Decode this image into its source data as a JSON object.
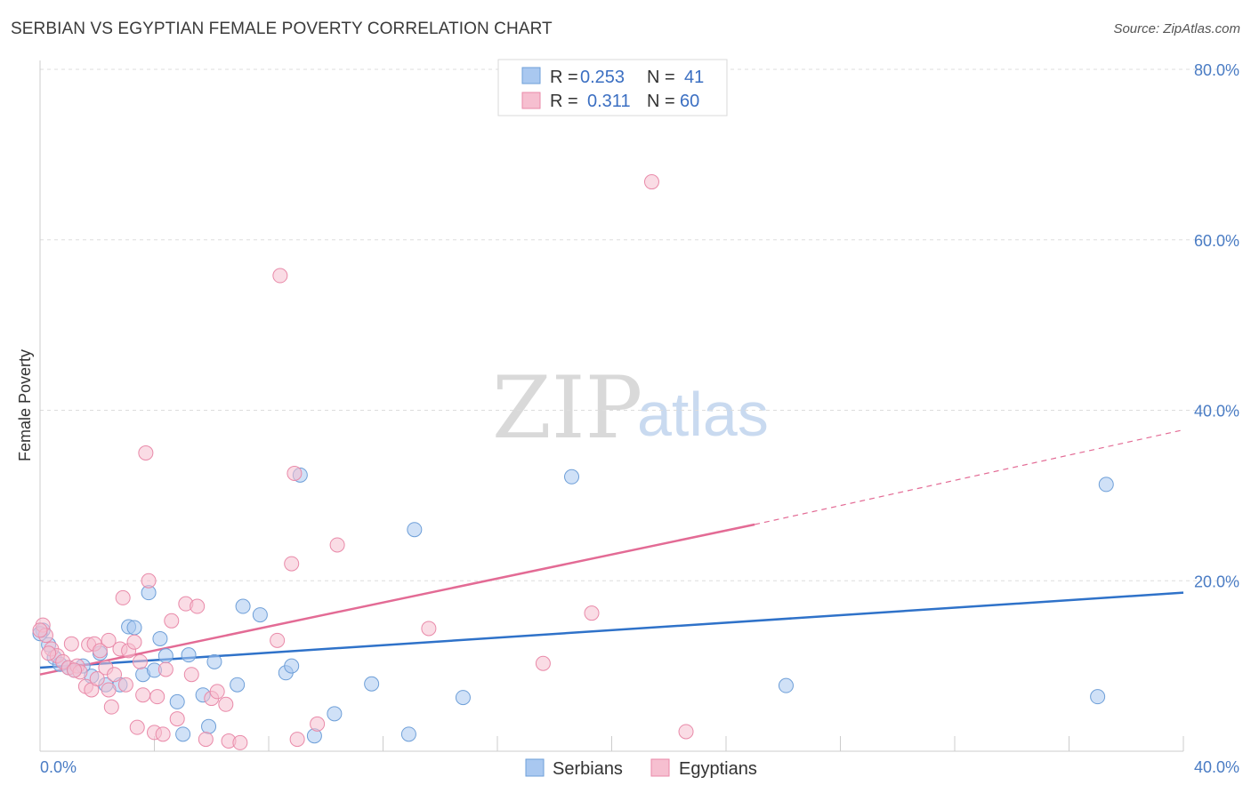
{
  "header": {
    "title": "SERBIAN VS EGYPTIAN FEMALE POVERTY CORRELATION CHART",
    "source": "Source: ZipAtlas.com"
  },
  "legend": {
    "serbians": {
      "r_label": "R =",
      "r_value": "0.253",
      "n_label": "N =",
      "n_value": "41"
    },
    "egyptians": {
      "r_label": "R =",
      "r_value": "0.311",
      "n_label": "N =",
      "n_value": "60"
    }
  },
  "bottom_legend": {
    "serbians": "Serbians",
    "egyptians": "Egyptians"
  },
  "watermark": {
    "zip": "ZIP",
    "atlas": "atlas"
  },
  "colors": {
    "serbians_fill": "#a9c8f0",
    "serbians_stroke": "#6e9fd8",
    "serbians_line": "#2f72c9",
    "egyptians_fill": "#f6bfd0",
    "egyptians_stroke": "#e98aa9",
    "egyptians_line": "#e36b95",
    "tick_label": "#4a7cc4",
    "grid": "#dddddd"
  },
  "chart_data": {
    "type": "scatter",
    "title": "SERBIAN VS EGYPTIAN FEMALE POVERTY CORRELATION CHART",
    "xlabel": "",
    "ylabel": "Female Poverty",
    "xlim": [
      0,
      40
    ],
    "ylim": [
      0,
      80
    ],
    "x_tick_labels": [
      "0.0%",
      "40.0%"
    ],
    "y_ticks": [
      20,
      40,
      60,
      80
    ],
    "y_tick_labels": [
      "20.0%",
      "40.0%",
      "60.0%",
      "80.0%"
    ],
    "grid": true,
    "legend_position": "top-center",
    "series": [
      {
        "name": "Serbians",
        "r": 0.253,
        "n": 41,
        "trend": {
          "x0": 0,
          "y0": 9.8,
          "x1": 40,
          "y1": 18.6
        },
        "points": [
          [
            0.1,
            14.2
          ],
          [
            0.3,
            12.5
          ],
          [
            0.5,
            11.0
          ],
          [
            0.7,
            10.2
          ],
          [
            1.0,
            9.8
          ],
          [
            1.2,
            9.5
          ],
          [
            1.5,
            10.0
          ],
          [
            1.8,
            8.8
          ],
          [
            2.1,
            11.5
          ],
          [
            2.3,
            7.8
          ],
          [
            2.8,
            7.8
          ],
          [
            3.1,
            14.6
          ],
          [
            3.3,
            14.5
          ],
          [
            3.6,
            9.0
          ],
          [
            3.8,
            18.6
          ],
          [
            4.0,
            9.5
          ],
          [
            4.2,
            13.2
          ],
          [
            4.4,
            11.2
          ],
          [
            4.8,
            5.8
          ],
          [
            5.0,
            2.0
          ],
          [
            5.2,
            11.3
          ],
          [
            5.7,
            6.6
          ],
          [
            5.9,
            2.9
          ],
          [
            6.1,
            10.5
          ],
          [
            6.9,
            7.8
          ],
          [
            7.1,
            17.0
          ],
          [
            7.7,
            16.0
          ],
          [
            8.6,
            9.2
          ],
          [
            8.8,
            10.0
          ],
          [
            9.1,
            32.4
          ],
          [
            9.6,
            1.8
          ],
          [
            10.3,
            4.4
          ],
          [
            11.6,
            7.9
          ],
          [
            12.9,
            2.0
          ],
          [
            13.1,
            26.0
          ],
          [
            14.8,
            6.3
          ],
          [
            18.6,
            32.2
          ],
          [
            26.1,
            7.7
          ],
          [
            37.0,
            6.4
          ],
          [
            37.3,
            31.3
          ],
          [
            0.0,
            13.8
          ]
        ]
      },
      {
        "name": "Egyptians",
        "r": 0.311,
        "n": 60,
        "trend": {
          "x0": 0,
          "y0": 9.0,
          "x1": 25,
          "y1": 26.6,
          "dashed_to_x": 40,
          "dashed_to_y": 37.7
        },
        "points": [
          [
            0.1,
            14.8
          ],
          [
            0.2,
            13.6
          ],
          [
            0.4,
            12.0
          ],
          [
            0.6,
            11.2
          ],
          [
            0.8,
            10.5
          ],
          [
            1.0,
            9.8
          ],
          [
            1.1,
            12.6
          ],
          [
            1.3,
            10.0
          ],
          [
            1.4,
            9.3
          ],
          [
            1.6,
            7.6
          ],
          [
            1.7,
            12.5
          ],
          [
            1.8,
            7.2
          ],
          [
            1.9,
            12.6
          ],
          [
            2.1,
            11.8
          ],
          [
            2.3,
            9.8
          ],
          [
            2.4,
            7.2
          ],
          [
            2.4,
            13.0
          ],
          [
            2.5,
            5.2
          ],
          [
            2.6,
            9.0
          ],
          [
            2.8,
            12.0
          ],
          [
            2.9,
            18.0
          ],
          [
            3.0,
            7.8
          ],
          [
            3.1,
            11.8
          ],
          [
            3.3,
            12.8
          ],
          [
            3.4,
            2.8
          ],
          [
            3.6,
            6.6
          ],
          [
            3.7,
            35.0
          ],
          [
            3.8,
            20.0
          ],
          [
            4.0,
            2.2
          ],
          [
            4.1,
            6.4
          ],
          [
            4.3,
            2.0
          ],
          [
            4.4,
            9.6
          ],
          [
            4.6,
            15.3
          ],
          [
            4.8,
            3.8
          ],
          [
            5.1,
            17.3
          ],
          [
            5.5,
            17.0
          ],
          [
            5.8,
            1.4
          ],
          [
            6.0,
            6.2
          ],
          [
            6.2,
            7.0
          ],
          [
            6.6,
            1.2
          ],
          [
            7.0,
            1.0
          ],
          [
            8.3,
            13.0
          ],
          [
            8.4,
            55.8
          ],
          [
            8.8,
            22.0
          ],
          [
            8.9,
            32.6
          ],
          [
            9.0,
            1.4
          ],
          [
            9.7,
            3.2
          ],
          [
            10.4,
            24.2
          ],
          [
            13.6,
            14.4
          ],
          [
            17.6,
            10.3
          ],
          [
            19.3,
            16.2
          ],
          [
            21.4,
            66.8
          ],
          [
            22.6,
            2.3
          ],
          [
            0.3,
            11.5
          ],
          [
            1.2,
            9.5
          ],
          [
            2.0,
            8.5
          ],
          [
            3.5,
            10.5
          ],
          [
            5.3,
            9.0
          ],
          [
            6.5,
            5.5
          ],
          [
            0.0,
            14.2
          ]
        ]
      }
    ]
  }
}
